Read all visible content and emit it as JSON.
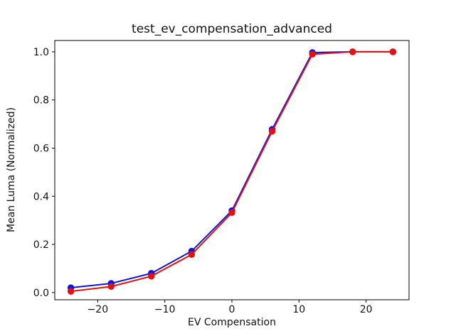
{
  "window": {
    "background": "#ffffff"
  },
  "chart_data": {
    "type": "line",
    "title": "test_ev_compensation_advanced",
    "xlabel": "EV Compensation",
    "ylabel": "Mean Luma (Normalized)",
    "x": [
      -24,
      -18,
      -12,
      -6,
      0,
      6,
      12,
      18,
      24
    ],
    "series": [
      {
        "name": "red-series",
        "color": "#e01212",
        "marker": "circle",
        "line_width": 2,
        "marker_radius": 4.7,
        "values": [
          0.005,
          0.025,
          0.068,
          0.158,
          0.332,
          0.67,
          0.99,
          1.0,
          1.0
        ]
      },
      {
        "name": "blue-series",
        "color": "#1212e0",
        "marker": "circle",
        "line_width": 2,
        "marker_radius": 4.7,
        "values": [
          0.02,
          0.038,
          0.08,
          0.172,
          0.34,
          0.678,
          0.997,
          1.0,
          1.0
        ]
      }
    ],
    "xticks": [
      -20,
      -10,
      0,
      10,
      20
    ],
    "yticks": [
      0.0,
      0.2,
      0.4,
      0.6,
      0.8,
      1.0
    ],
    "xlim": [
      -26.4,
      26.4
    ],
    "ylim": [
      -0.03,
      1.047
    ],
    "grid": false,
    "legend": "none",
    "axis_color": "#000000",
    "text_color": "#111111"
  }
}
